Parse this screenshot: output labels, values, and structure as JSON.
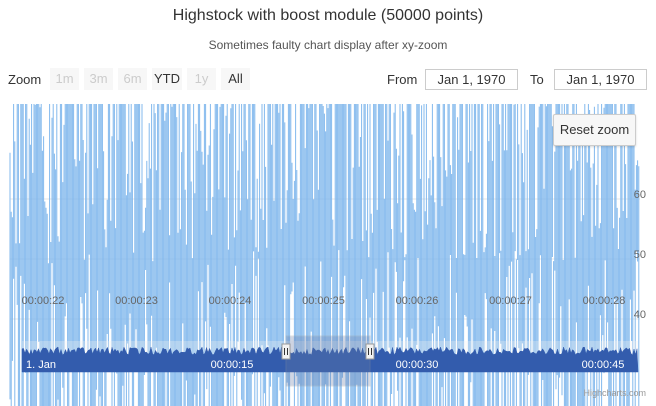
{
  "chart_data": {
    "type": "line",
    "title": "Highstock with boost module (50000 points)",
    "subtitle": "Sometimes faulty chart display after xy-zoom",
    "x_tick_labels": [
      "00:00:22",
      "00:00:23",
      "00:00:24",
      "00:00:25",
      "00:00:26",
      "00:00:27",
      "00:00:28"
    ],
    "y_tick_labels": [
      "40",
      "50",
      "60"
    ],
    "yaxis_range": [
      25,
      68
    ],
    "series": [
      {
        "points": 50000,
        "color": "#7cb5ec"
      }
    ],
    "navigator_tick_labels": [
      "1. Jan",
      "00:00:15",
      "00:00:30",
      "00:00:45"
    ],
    "navigator_color": "#335cad"
  },
  "range_selector": {
    "zoom_label": "Zoom",
    "buttons": [
      {
        "label": "1m",
        "state": "disabled"
      },
      {
        "label": "3m",
        "state": "disabled"
      },
      {
        "label": "6m",
        "state": "disabled"
      },
      {
        "label": "YTD",
        "state": "enabled"
      },
      {
        "label": "1y",
        "state": "disabled"
      },
      {
        "label": "All",
        "state": "enabled"
      }
    ],
    "from_label": "From",
    "from_value": "Jan 1, 1970",
    "to_label": "To",
    "to_value": "Jan 1, 1970"
  },
  "reset_zoom_label": "Reset zoom",
  "credits": "Highcharts.com"
}
